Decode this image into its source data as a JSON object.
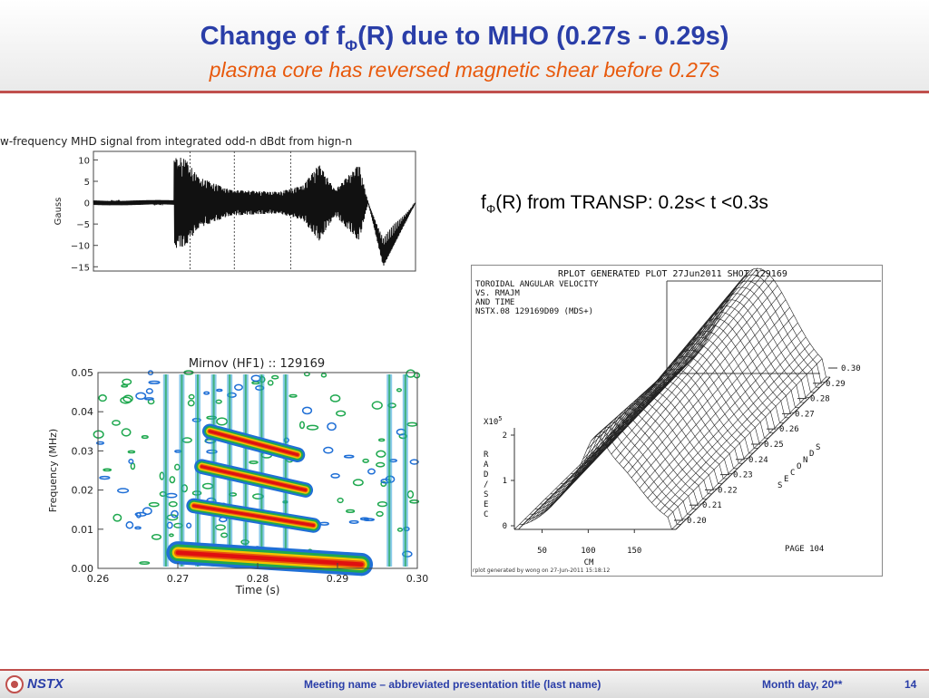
{
  "slide": {
    "title_prefix": "Change of f",
    "title_sub": "Φ",
    "title_suffix": "(R) due to MHO (0.27s - 0.29s)",
    "subtitle": "plasma core has reversed magnetic shear before 0.27s",
    "transp_prefix": "f",
    "transp_sub": "Φ",
    "transp_suffix": "(R) from TRANSP: 0.2s< t <0.3s"
  },
  "footer": {
    "logo_text": "NSTX",
    "meeting": "Meeting name  – abbreviated presentation title (last name)",
    "date": "Month day, 20**",
    "page": "14"
  },
  "chart_data": [
    {
      "type": "line",
      "title": "w-frequency MHD signal from integrated odd-n dBdt from hign-n",
      "ylabel": "Gauss",
      "yticks": [
        "10",
        "5",
        "0",
        "−5",
        "−10",
        "−15"
      ],
      "ylim": [
        -16,
        12
      ],
      "xlim": [
        0.26,
        0.3
      ],
      "grid": false,
      "dashed_vlines": [
        0.272,
        0.2775,
        0.2845
      ],
      "series": [
        {
          "x": [
            0.26,
            0.265,
            0.2705,
            0.2715,
            0.273,
            0.277,
            0.283,
            0.286,
            0.288,
            0.29,
            0.2915,
            0.293,
            0.296,
            0.3
          ],
          "y": [
            0,
            0,
            11,
            10,
            6,
            3,
            2.5,
            4,
            9,
            3,
            6,
            9,
            -15,
            0
          ]
        }
      ]
    },
    {
      "type": "heatmap",
      "title": "Mirnov (HF1) :: 129169",
      "xlabel": "Time (s)",
      "ylabel": "Frequency (MHz)",
      "xticks": [
        "0.26",
        "0.27",
        "0.28",
        "0.29",
        "0.30"
      ],
      "yticks": [
        "0.00",
        "0.01",
        "0.02",
        "0.03",
        "0.04",
        "0.05"
      ],
      "xlim": [
        0.26,
        0.3
      ],
      "ylim": [
        0,
        0.05
      ],
      "bands": [
        {
          "x_start": 0.27,
          "x_end": 0.293,
          "y_start": 0.004,
          "y_end": 0.001
        },
        {
          "x_start": 0.272,
          "x_end": 0.287,
          "y_start": 0.016,
          "y_end": 0.011
        },
        {
          "x_start": 0.273,
          "x_end": 0.286,
          "y_start": 0.026,
          "y_end": 0.02
        },
        {
          "x_start": 0.274,
          "x_end": 0.285,
          "y_start": 0.035,
          "y_end": 0.029
        }
      ]
    },
    {
      "type": "3d-surface",
      "header": "RPLOT GENERATED PLOT 27Jun2011 SHOT 129169",
      "info": [
        "TOROIDAL ANGULAR VELOCITY",
        "VS. RMAJM",
        "AND TIME",
        "NSTX.08 129169D09 (MDS+)"
      ],
      "z_multiplier": "X10",
      "z_exp": "5",
      "zlabel": "RAD/SEC",
      "zticks": [
        "0",
        "1",
        "2"
      ],
      "xticks": [
        "50",
        "100",
        "150"
      ],
      "xlabel": "CM",
      "time_ticks": [
        "0.20",
        "0.21",
        "0.22",
        "0.23",
        "0.24",
        "0.25",
        "0.26",
        "0.27",
        "0.28",
        "0.29",
        "0.30"
      ],
      "time_label": "SECONDS",
      "page_label": "PAGE 104",
      "footnote": "rplot generated by wong on 27-Jun-2011 15:18:12"
    }
  ]
}
